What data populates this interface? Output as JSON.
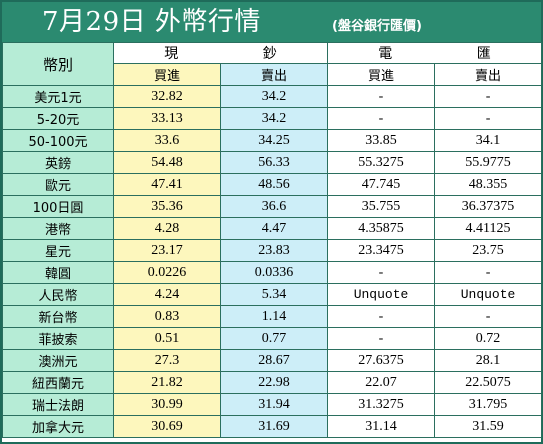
{
  "title": "7月29日 外幣行情",
  "subtitle": "(盤谷銀行匯價)",
  "headers": {
    "currency": "幣別",
    "cash": "現 鈔",
    "telegraphic": "電 匯",
    "buy": "買進",
    "sell": "賣出"
  },
  "rows": [
    {
      "currency": "美元1元",
      "cash_buy": "32.82",
      "cash_sell": "34.2",
      "tt_buy": "-",
      "tt_sell": "-"
    },
    {
      "currency": "5-20元",
      "cash_buy": "33.13",
      "cash_sell": "34.2",
      "tt_buy": "-",
      "tt_sell": "-"
    },
    {
      "currency": "50-100元",
      "cash_buy": "33.6",
      "cash_sell": "34.25",
      "tt_buy": "33.85",
      "tt_sell": "34.1"
    },
    {
      "currency": "英鎊",
      "cash_buy": "54.48",
      "cash_sell": "56.33",
      "tt_buy": "55.3275",
      "tt_sell": "55.9775"
    },
    {
      "currency": "歐元",
      "cash_buy": "47.41",
      "cash_sell": "48.56",
      "tt_buy": "47.745",
      "tt_sell": "48.355"
    },
    {
      "currency": "100日圓",
      "cash_buy": "35.36",
      "cash_sell": "36.6",
      "tt_buy": "35.755",
      "tt_sell": "36.37375"
    },
    {
      "currency": "港幣",
      "cash_buy": "4.28",
      "cash_sell": "4.47",
      "tt_buy": "4.35875",
      "tt_sell": "4.41125"
    },
    {
      "currency": "星元",
      "cash_buy": "23.17",
      "cash_sell": "23.83",
      "tt_buy": "23.3475",
      "tt_sell": "23.75"
    },
    {
      "currency": "韓圓",
      "cash_buy": "0.0226",
      "cash_sell": "0.0336",
      "tt_buy": "-",
      "tt_sell": "-"
    },
    {
      "currency": "人民幣",
      "cash_buy": "4.24",
      "cash_sell": "5.34",
      "tt_buy": "Unquote",
      "tt_sell": "Unquote"
    },
    {
      "currency": "新台幣",
      "cash_buy": "0.83",
      "cash_sell": "1.14",
      "tt_buy": "-",
      "tt_sell": "-"
    },
    {
      "currency": "菲披索",
      "cash_buy": "0.51",
      "cash_sell": "0.77",
      "tt_buy": "-",
      "tt_sell": "0.72"
    },
    {
      "currency": "澳洲元",
      "cash_buy": "27.3",
      "cash_sell": "28.67",
      "tt_buy": "27.6375",
      "tt_sell": "28.1"
    },
    {
      "currency": "紐西蘭元",
      "cash_buy": "21.82",
      "cash_sell": "22.98",
      "tt_buy": "22.07",
      "tt_sell": "22.5075"
    },
    {
      "currency": "瑞士法朗",
      "cash_buy": "30.99",
      "cash_sell": "31.94",
      "tt_buy": "31.3275",
      "tt_sell": "31.795"
    },
    {
      "currency": "加拿大元",
      "cash_buy": "30.69",
      "cash_sell": "31.69",
      "tt_buy": "31.14",
      "tt_sell": "31.59"
    }
  ],
  "colors": {
    "title_bg": "#2b8a70",
    "currency_col": "#b6ecd6",
    "cash_buy_col": "#fdf7bd",
    "cash_sell_col": "#cdeef8",
    "border": "#2b6f5f"
  }
}
